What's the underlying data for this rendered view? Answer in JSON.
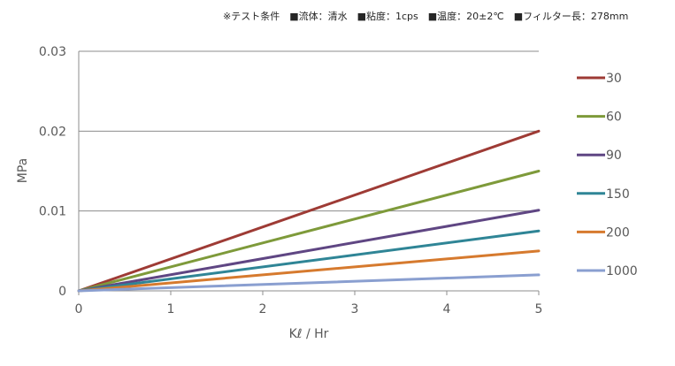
{
  "conditions_text": "※テスト条件　■流体：清水　■粘度：1cps　■温度：20±2℃　■フィルター長：278mm",
  "chart_data": {
    "type": "line",
    "title": "",
    "xlabel": "Kℓ / Hr",
    "ylabel": "MPa",
    "xlim": [
      0,
      5
    ],
    "ylim": [
      0,
      0.03
    ],
    "x_ticks": [
      "0",
      "1",
      "2",
      "3",
      "4",
      "5"
    ],
    "y_ticks": [
      "0",
      "0.01",
      "0.02",
      "0.03"
    ],
    "grid": "horizontal",
    "legend_position": "right",
    "x": [
      0,
      5
    ],
    "series": [
      {
        "name": "30",
        "color": "#9e3b35",
        "values": [
          0,
          0.02
        ]
      },
      {
        "name": "60",
        "color": "#7e9a3a",
        "values": [
          0,
          0.015
        ]
      },
      {
        "name": "90",
        "color": "#5f4683",
        "values": [
          0,
          0.0101
        ]
      },
      {
        "name": "150",
        "color": "#2f8596",
        "values": [
          0,
          0.0075
        ]
      },
      {
        "name": "200",
        "color": "#d67a2e",
        "values": [
          0,
          0.005
        ]
      },
      {
        "name": "1000",
        "color": "#8a9fd0",
        "values": [
          0,
          0.002
        ]
      }
    ]
  }
}
